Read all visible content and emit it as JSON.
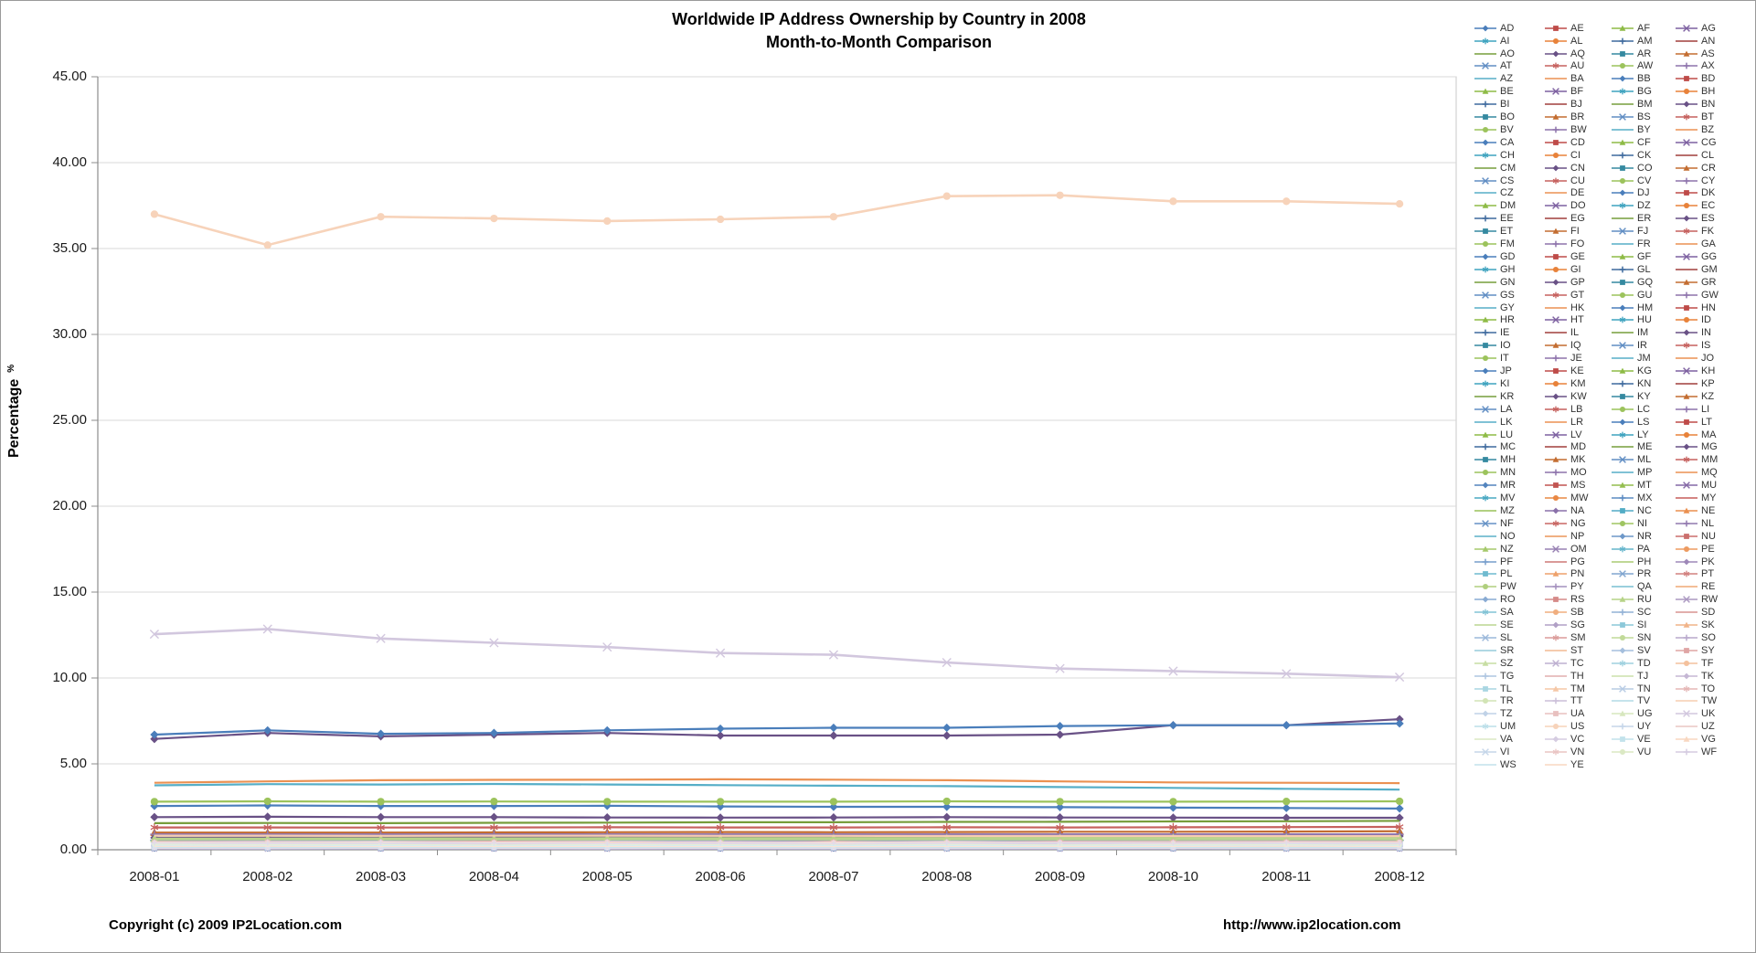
{
  "title": {
    "line1": "Worldwide IP Address Ownership by Country in 2008",
    "line2": "Month-to-Month Comparison"
  },
  "y_axis": {
    "title": "Percentage",
    "suffix": "%",
    "ticks": [
      {
        "value": 45,
        "label": "45.00"
      },
      {
        "value": 40,
        "label": "40.00"
      },
      {
        "value": 35,
        "label": "35.00"
      },
      {
        "value": 30,
        "label": "30.00"
      },
      {
        "value": 25,
        "label": "25.00"
      },
      {
        "value": 20,
        "label": "20.00"
      },
      {
        "value": 15,
        "label": "15.00"
      },
      {
        "value": 10,
        "label": "10.00"
      },
      {
        "value": 5,
        "label": "5.00"
      },
      {
        "value": 0,
        "label": "0.00"
      }
    ]
  },
  "x_axis": {
    "categories": [
      "2008-01",
      "2008-02",
      "2008-03",
      "2008-04",
      "2008-05",
      "2008-06",
      "2008-07",
      "2008-08",
      "2008-09",
      "2008-10",
      "2008-11",
      "2008-12"
    ]
  },
  "footer": {
    "copyright": "Copyright (c) 2009 IP2Location.com",
    "url": "http://www.ip2location.com"
  },
  "legend": {
    "entries": [
      "AD",
      "AE",
      "AF",
      "AG",
      "AI",
      "AL",
      "AM",
      "AN",
      "AO",
      "AQ",
      "AR",
      "AS",
      "AT",
      "AU",
      "AW",
      "AX",
      "AZ",
      "BA",
      "BB",
      "BD",
      "BE",
      "BF",
      "BG",
      "BH",
      "BI",
      "BJ",
      "BM",
      "BN",
      "BO",
      "BR",
      "BS",
      "BT",
      "BV",
      "BW",
      "BY",
      "BZ",
      "CA",
      "CD",
      "CF",
      "CG",
      "CH",
      "CI",
      "CK",
      "CL",
      "CM",
      "CN",
      "CO",
      "CR",
      "CS",
      "CU",
      "CV",
      "CY",
      "CZ",
      "DE",
      "DJ",
      "DK",
      "DM",
      "DO",
      "DZ",
      "EC",
      "EE",
      "EG",
      "ER",
      "ES",
      "ET",
      "FI",
      "FJ",
      "FK",
      "FM",
      "FO",
      "FR",
      "GA",
      "GD",
      "GE",
      "GF",
      "GG",
      "GH",
      "GI",
      "GL",
      "GM",
      "GN",
      "GP",
      "GQ",
      "GR",
      "GS",
      "GT",
      "GU",
      "GW",
      "GY",
      "HK",
      "HM",
      "HN",
      "HR",
      "HT",
      "HU",
      "ID",
      "IE",
      "IL",
      "IM",
      "IN",
      "IO",
      "IQ",
      "IR",
      "IS",
      "IT",
      "JE",
      "JM",
      "JO",
      "JP",
      "KE",
      "KG",
      "KH",
      "KI",
      "KM",
      "KN",
      "KP",
      "KR",
      "KW",
      "KY",
      "KZ",
      "LA",
      "LB",
      "LC",
      "LI",
      "LK",
      "LR",
      "LS",
      "LT",
      "LU",
      "LV",
      "LY",
      "MA",
      "MC",
      "MD",
      "ME",
      "MG",
      "MH",
      "MK",
      "ML",
      "MM",
      "MN",
      "MO",
      "MP",
      "MQ",
      "MR",
      "MS",
      "MT",
      "MU",
      "MV",
      "MW",
      "MX",
      "MY",
      "MZ",
      "NA",
      "NC",
      "NE",
      "NF",
      "NG",
      "NI",
      "NL",
      "NO",
      "NP",
      "NR",
      "NU",
      "NZ",
      "OM",
      "PA",
      "PE",
      "PF",
      "PG",
      "PH",
      "PK",
      "PL",
      "PN",
      "PR",
      "PT",
      "PW",
      "PY",
      "QA",
      "RE",
      "RO",
      "RS",
      "RU",
      "RW",
      "SA",
      "SB",
      "SC",
      "SD",
      "SE",
      "SG",
      "SI",
      "SK",
      "SL",
      "SM",
      "SN",
      "SO",
      "SR",
      "ST",
      "SV",
      "SY",
      "SZ",
      "TC",
      "TD",
      "TF",
      "TG",
      "TH",
      "TJ",
      "TK",
      "TL",
      "TM",
      "TN",
      "TO",
      "TR",
      "TT",
      "TV",
      "TW",
      "TZ",
      "UA",
      "UG",
      "UK",
      "UM",
      "US",
      "UY",
      "UZ",
      "VA",
      "VC",
      "VE",
      "VG",
      "VI",
      "VN",
      "VU",
      "WF",
      "WS",
      "YE"
    ]
  },
  "chart_data": {
    "type": "line",
    "title": "Worldwide IP Address Ownership by Country in 2008 — Month-to-Month Comparison",
    "xlabel": "",
    "ylabel": "Percentage %",
    "ylim": [
      0,
      45
    ],
    "grid": "horizontal",
    "legend_position": "right",
    "x": [
      "2008-01",
      "2008-02",
      "2008-03",
      "2008-04",
      "2008-05",
      "2008-06",
      "2008-07",
      "2008-08",
      "2008-09",
      "2008-10",
      "2008-11",
      "2008-12"
    ],
    "series": [
      {
        "name": "US",
        "values": [
          37.0,
          35.2,
          36.85,
          36.75,
          36.6,
          36.7,
          36.85,
          38.05,
          38.1,
          37.75,
          37.75,
          37.6
        ]
      },
      {
        "name": "UK",
        "values": [
          12.55,
          12.85,
          12.3,
          12.05,
          11.8,
          11.45,
          11.35,
          10.9,
          10.55,
          10.4,
          10.25,
          10.05
        ]
      },
      {
        "name": "CN",
        "values": [
          6.45,
          6.8,
          6.6,
          6.7,
          6.8,
          6.65,
          6.65,
          6.65,
          6.7,
          7.25,
          7.25,
          7.6
        ]
      },
      {
        "name": "JP",
        "values": [
          6.7,
          6.95,
          6.75,
          6.8,
          6.95,
          7.05,
          7.1,
          7.1,
          7.2,
          7.25,
          7.25,
          7.35
        ]
      },
      {
        "name": "DE",
        "values": [
          3.9,
          3.98,
          4.05,
          4.07,
          4.08,
          4.1,
          4.08,
          4.05,
          3.98,
          3.92,
          3.9,
          3.88
        ]
      },
      {
        "name": "FR",
        "values": [
          3.75,
          3.82,
          3.8,
          3.83,
          3.8,
          3.76,
          3.73,
          3.7,
          3.65,
          3.6,
          3.55,
          3.5
        ]
      },
      {
        "name": "IT",
        "values": [
          2.8,
          2.82,
          2.8,
          2.81,
          2.8,
          2.8,
          2.8,
          2.82,
          2.8,
          2.8,
          2.81,
          2.82
        ]
      },
      {
        "name": "CA",
        "values": [
          2.55,
          2.58,
          2.55,
          2.55,
          2.56,
          2.52,
          2.5,
          2.5,
          2.48,
          2.45,
          2.43,
          2.4
        ]
      },
      {
        "name": "ES",
        "values": [
          1.9,
          1.92,
          1.9,
          1.9,
          1.88,
          1.87,
          1.88,
          1.9,
          1.88,
          1.87,
          1.86,
          1.86
        ]
      },
      {
        "name": "KR",
        "values": [
          1.55,
          1.56,
          1.55,
          1.57,
          1.58,
          1.6,
          1.6,
          1.62,
          1.63,
          1.65,
          1.66,
          1.68
        ]
      },
      {
        "name": "AU",
        "values": [
          1.3,
          1.3,
          1.29,
          1.3,
          1.31,
          1.3,
          1.3,
          1.31,
          1.3,
          1.31,
          1.32,
          1.33
        ]
      },
      {
        "name": "BR",
        "values": [
          1.0,
          1.0,
          1.0,
          1.01,
          1.02,
          1.03,
          1.02,
          1.03,
          1.05,
          1.05,
          1.06,
          1.08
        ]
      },
      {
        "name": "NL",
        "values": [
          0.9,
          0.9,
          0.9,
          0.9,
          0.9,
          0.9,
          0.9,
          0.9,
          0.9,
          0.9,
          0.9,
          0.9
        ]
      },
      {
        "name": "TW",
        "values": [
          0.82,
          0.82,
          0.81,
          0.82,
          0.82,
          0.81,
          0.81,
          0.8,
          0.8,
          0.8,
          0.79,
          0.79
        ]
      },
      {
        "name": "IN",
        "values": [
          0.7,
          0.71,
          0.71,
          0.72,
          0.73,
          0.74,
          0.74,
          0.75,
          0.76,
          0.77,
          0.78,
          0.8
        ]
      },
      {
        "name": "RU",
        "values": [
          0.65,
          0.65,
          0.66,
          0.66,
          0.67,
          0.67,
          0.68,
          0.68,
          0.69,
          0.7,
          0.7,
          0.71
        ]
      },
      {
        "name": "SE",
        "values": [
          0.6,
          0.6,
          0.6,
          0.6,
          0.6,
          0.6,
          0.6,
          0.6,
          0.6,
          0.6,
          0.6,
          0.6
        ]
      },
      {
        "name": "MX",
        "values": [
          0.55,
          0.55,
          0.55,
          0.55,
          0.55,
          0.55,
          0.55,
          0.55,
          0.55,
          0.55,
          0.55,
          0.55
        ]
      }
    ],
    "other_series": {
      "note": "All remaining legend countries plot as an overlapping band of nearly flat lines",
      "approx_value_range": [
        0.03,
        0.5
      ]
    }
  },
  "colors": {
    "palette": [
      "#4A7EBB",
      "#BE4B48",
      "#8EBB46",
      "#7D60A0",
      "#3FA3BF",
      "#E8823A"
    ],
    "gridline": "#D9D9D9",
    "plot_border": "#C9C9C9",
    "axis": "#8C8C8C",
    "text": "#000000",
    "legend_text": "#333333"
  }
}
